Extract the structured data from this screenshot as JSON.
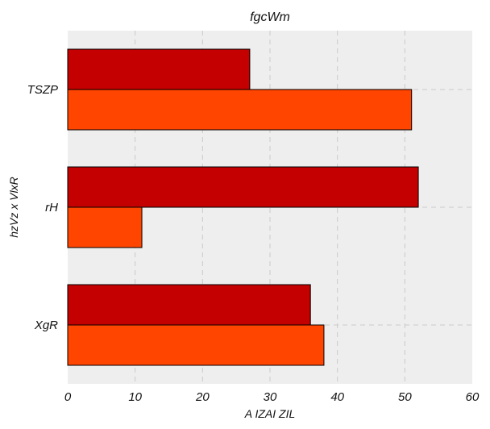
{
  "chart_data": {
    "type": "bar",
    "orientation": "horizontal",
    "title": "fgcWm",
    "xlabel": "A IZAI  ZIL",
    "ylabel": "hzVz x VlxR",
    "categories": [
      "XgR",
      "rH",
      "TSZP"
    ],
    "series": [
      {
        "color": "#c40000",
        "values": [
          36,
          52,
          27
        ]
      },
      {
        "color": "#ff4500",
        "values": [
          38,
          11,
          51
        ]
      }
    ],
    "xlim": [
      0,
      60
    ],
    "xticks": [
      0,
      10,
      20,
      30,
      40,
      50,
      60
    ],
    "grid": true,
    "background": "#eeeeee"
  }
}
